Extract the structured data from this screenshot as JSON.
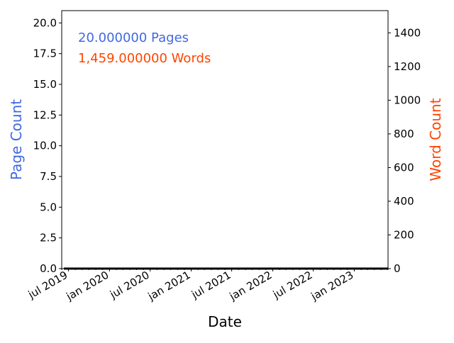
{
  "chart_data": {
    "type": "line",
    "xlabel": "Date",
    "ylabel_left": "Page Count",
    "ylabel_right": "Word Count",
    "xlim": [
      "2019-06-01",
      "2023-06-01"
    ],
    "ylim_left": [
      0,
      21
    ],
    "ylim_right": [
      0,
      1532
    ],
    "x_ticks": [
      {
        "date": "2019-07-01",
        "label": "jul 2019"
      },
      {
        "date": "2020-01-01",
        "label": "jan 2020"
      },
      {
        "date": "2020-07-01",
        "label": "jul 2020"
      },
      {
        "date": "2021-01-01",
        "label": "jan 2021"
      },
      {
        "date": "2021-07-01",
        "label": "jul 2021"
      },
      {
        "date": "2022-01-01",
        "label": "jan 2022"
      },
      {
        "date": "2022-07-01",
        "label": "jul 2022"
      },
      {
        "date": "2023-01-01",
        "label": "jan 2023"
      }
    ],
    "y_left_ticks": [
      "0.0",
      "2.5",
      "5.0",
      "7.5",
      "10.0",
      "12.5",
      "15.0",
      "17.5",
      "20.0"
    ],
    "y_right_ticks": [
      "0",
      "200",
      "400",
      "600",
      "800",
      "1000",
      "1200",
      "1400"
    ],
    "annotations": [
      {
        "text": "20.000000 Pages",
        "color": "#4169e1"
      },
      {
        "text": "1,459.000000 Words",
        "color": "#ff4500"
      }
    ],
    "colors": {
      "left_axis": "#4169e1",
      "right_axis": "#ff4500",
      "baseline": "#000000"
    },
    "grid": false,
    "legend": "none"
  }
}
